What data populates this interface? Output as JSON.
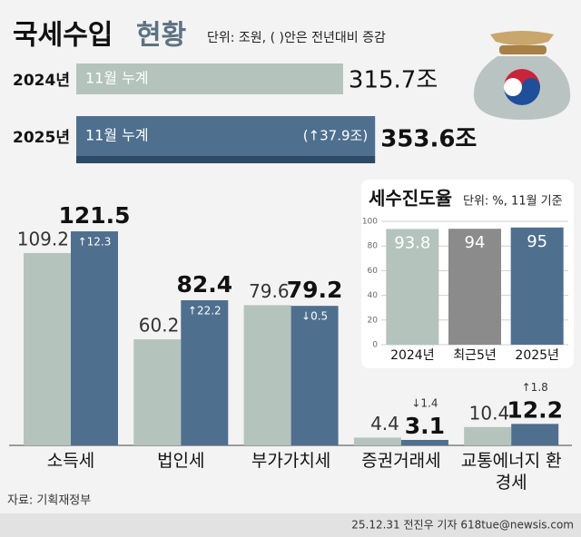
{
  "chart_data": [
    {
      "type": "barh",
      "title": [
        "국세수입",
        "현황"
      ],
      "subtitle": "단위: 조원, ( )안은 전년대비 증감",
      "categories": [
        "2024년",
        "2025년"
      ],
      "bar_labels": [
        "11월 누계",
        "11월 누계"
      ],
      "values": [
        315.7,
        353.6
      ],
      "value_labels": [
        "315.7조",
        "353.6조"
      ],
      "colors": [
        "#b4c3bc",
        "#4f6f8f"
      ],
      "changes": [
        null,
        37.9
      ],
      "change_labels": [
        null,
        "(↑37.9조)"
      ]
    },
    {
      "type": "grouped-bar",
      "categories": [
        "소득세",
        "법인세",
        "부가가치세",
        "증권거래세",
        "교통에너지 환경세"
      ],
      "series": [
        {
          "color": "#b4c3bc",
          "values": [
            109.2,
            60.2,
            79.6,
            4.4,
            10.4
          ]
        },
        {
          "color": "#4f6f8f",
          "values": [
            121.5,
            82.4,
            79.2,
            3.1,
            12.2
          ]
        }
      ],
      "changes": [
        12.3,
        22.2,
        -0.5,
        -1.4,
        1.8
      ],
      "change_labels": [
        "↑12.3",
        "↑22.2",
        "↓0.5",
        "↓1.4",
        "↑1.8"
      ],
      "source": "자료: 기획재정부",
      "credit": "25.12.31 전진우 기자 618tue@newsis.com"
    },
    {
      "type": "bar",
      "title": "세수진도율",
      "subtitle": "단위: %, 11월 기준",
      "categories": [
        "2024년",
        "최근5년",
        "2025년"
      ],
      "values": [
        93.8,
        94.0,
        95.0
      ],
      "colors": [
        "#b4c3bc",
        "#8b8b8b",
        "#4f6f8f"
      ],
      "ylim": [
        0,
        100
      ],
      "yticks": [
        0,
        20,
        40,
        60,
        80,
        100
      ],
      "grid": true
    }
  ]
}
